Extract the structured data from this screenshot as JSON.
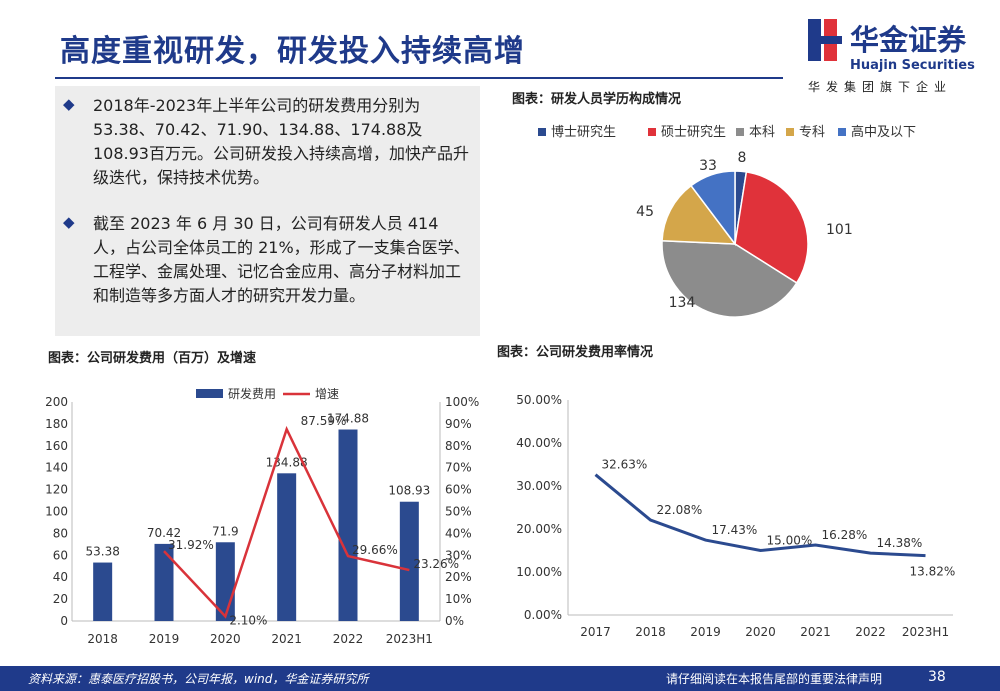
{
  "header": {
    "title": "高度重视研发，研发投入持续高增",
    "logo_cn": "华金证券",
    "logo_en": "Huajin Securities",
    "logo_sub": "华发集团旗下企业"
  },
  "text_box": {
    "paragraphs": [
      "2018年-2023年上半年公司的研发费用分别为53.38、70.42、71.90、134.88、174.88及108.93百万元。公司研发投入持续高增，加快产品升级迭代，保持技术优势。",
      "截至 2023 年 6 月 30 日，公司有研发人员 414 人，占公司全体员工的 21%，形成了一支集合医学、工程学、金属处理、记忆合金应用、高分子材料加工和制造等多方面人才的研究开发力量。"
    ]
  },
  "chart_titles": {
    "pie": "图表：研发人员学历构成情况",
    "bar": "图表：公司研发费用（百万）及增速",
    "line": "图表：公司研发费用率情况"
  },
  "footer": {
    "source": "资料来源：惠泰医疗招股书，公司年报，wind，华金证券研究所",
    "disclaimer": "请仔细阅读在本报告尾部的重要法律声明",
    "page": "38"
  },
  "colors": {
    "brand": "#1f3a8a",
    "bar": "#2b4a8f",
    "growth": "#d9333a",
    "line": "#2b4a8f",
    "red": "#e0323a"
  },
  "chart_data": [
    {
      "type": "pie",
      "categories": [
        "博士研究生",
        "硕士研究生",
        "本科",
        "专科",
        "高中及以下"
      ],
      "values": [
        8,
        101,
        134,
        45,
        33
      ],
      "value_labels": [
        "8",
        "101",
        "134",
        "45",
        "33"
      ],
      "colors": [
        "#2b4a8f",
        "#e0323a",
        "#8c8c8c",
        "#d4a64a",
        "#4472c4"
      ],
      "legend_position": "top"
    },
    {
      "type": "bar",
      "categories": [
        "2018",
        "2019",
        "2020",
        "2021",
        "2022",
        "2023H1"
      ],
      "series": [
        {
          "name": "研发费用",
          "type": "bar",
          "values": [
            53.38,
            70.42,
            71.9,
            134.88,
            174.88,
            108.93
          ],
          "labels": [
            "53.38",
            "70.42",
            "71.9",
            "134.88",
            "174.88",
            "108.93"
          ]
        },
        {
          "name": "增速",
          "type": "line",
          "axis": "right",
          "values": [
            null,
            31.92,
            2.1,
            87.59,
            29.66,
            23.26
          ],
          "labels": [
            "",
            "31.92%",
            "2.10%",
            "87.59%",
            "29.66%",
            "23.26%"
          ]
        }
      ],
      "ylim": [
        0,
        200
      ],
      "y_ticks": [
        "0",
        "20",
        "40",
        "60",
        "80",
        "100",
        "120",
        "140",
        "160",
        "180",
        "200"
      ],
      "y2lim": [
        0,
        100
      ],
      "y2_ticks": [
        "0%",
        "10%",
        "20%",
        "30%",
        "40%",
        "50%",
        "60%",
        "70%",
        "80%",
        "90%",
        "100%"
      ],
      "legend_position": "top"
    },
    {
      "type": "line",
      "categories": [
        "2017",
        "2018",
        "2019",
        "2020",
        "2021",
        "2022",
        "2023H1"
      ],
      "values": [
        32.63,
        22.08,
        17.43,
        15.0,
        16.28,
        14.38,
        13.82
      ],
      "labels": [
        "32.63%",
        "22.08%",
        "17.43%",
        "15.00%",
        "16.28%",
        "14.38%",
        "13.82%"
      ],
      "ylim": [
        0,
        50
      ],
      "y_ticks": [
        "0.00%",
        "10.00%",
        "20.00%",
        "30.00%",
        "40.00%",
        "50.00%"
      ]
    }
  ]
}
